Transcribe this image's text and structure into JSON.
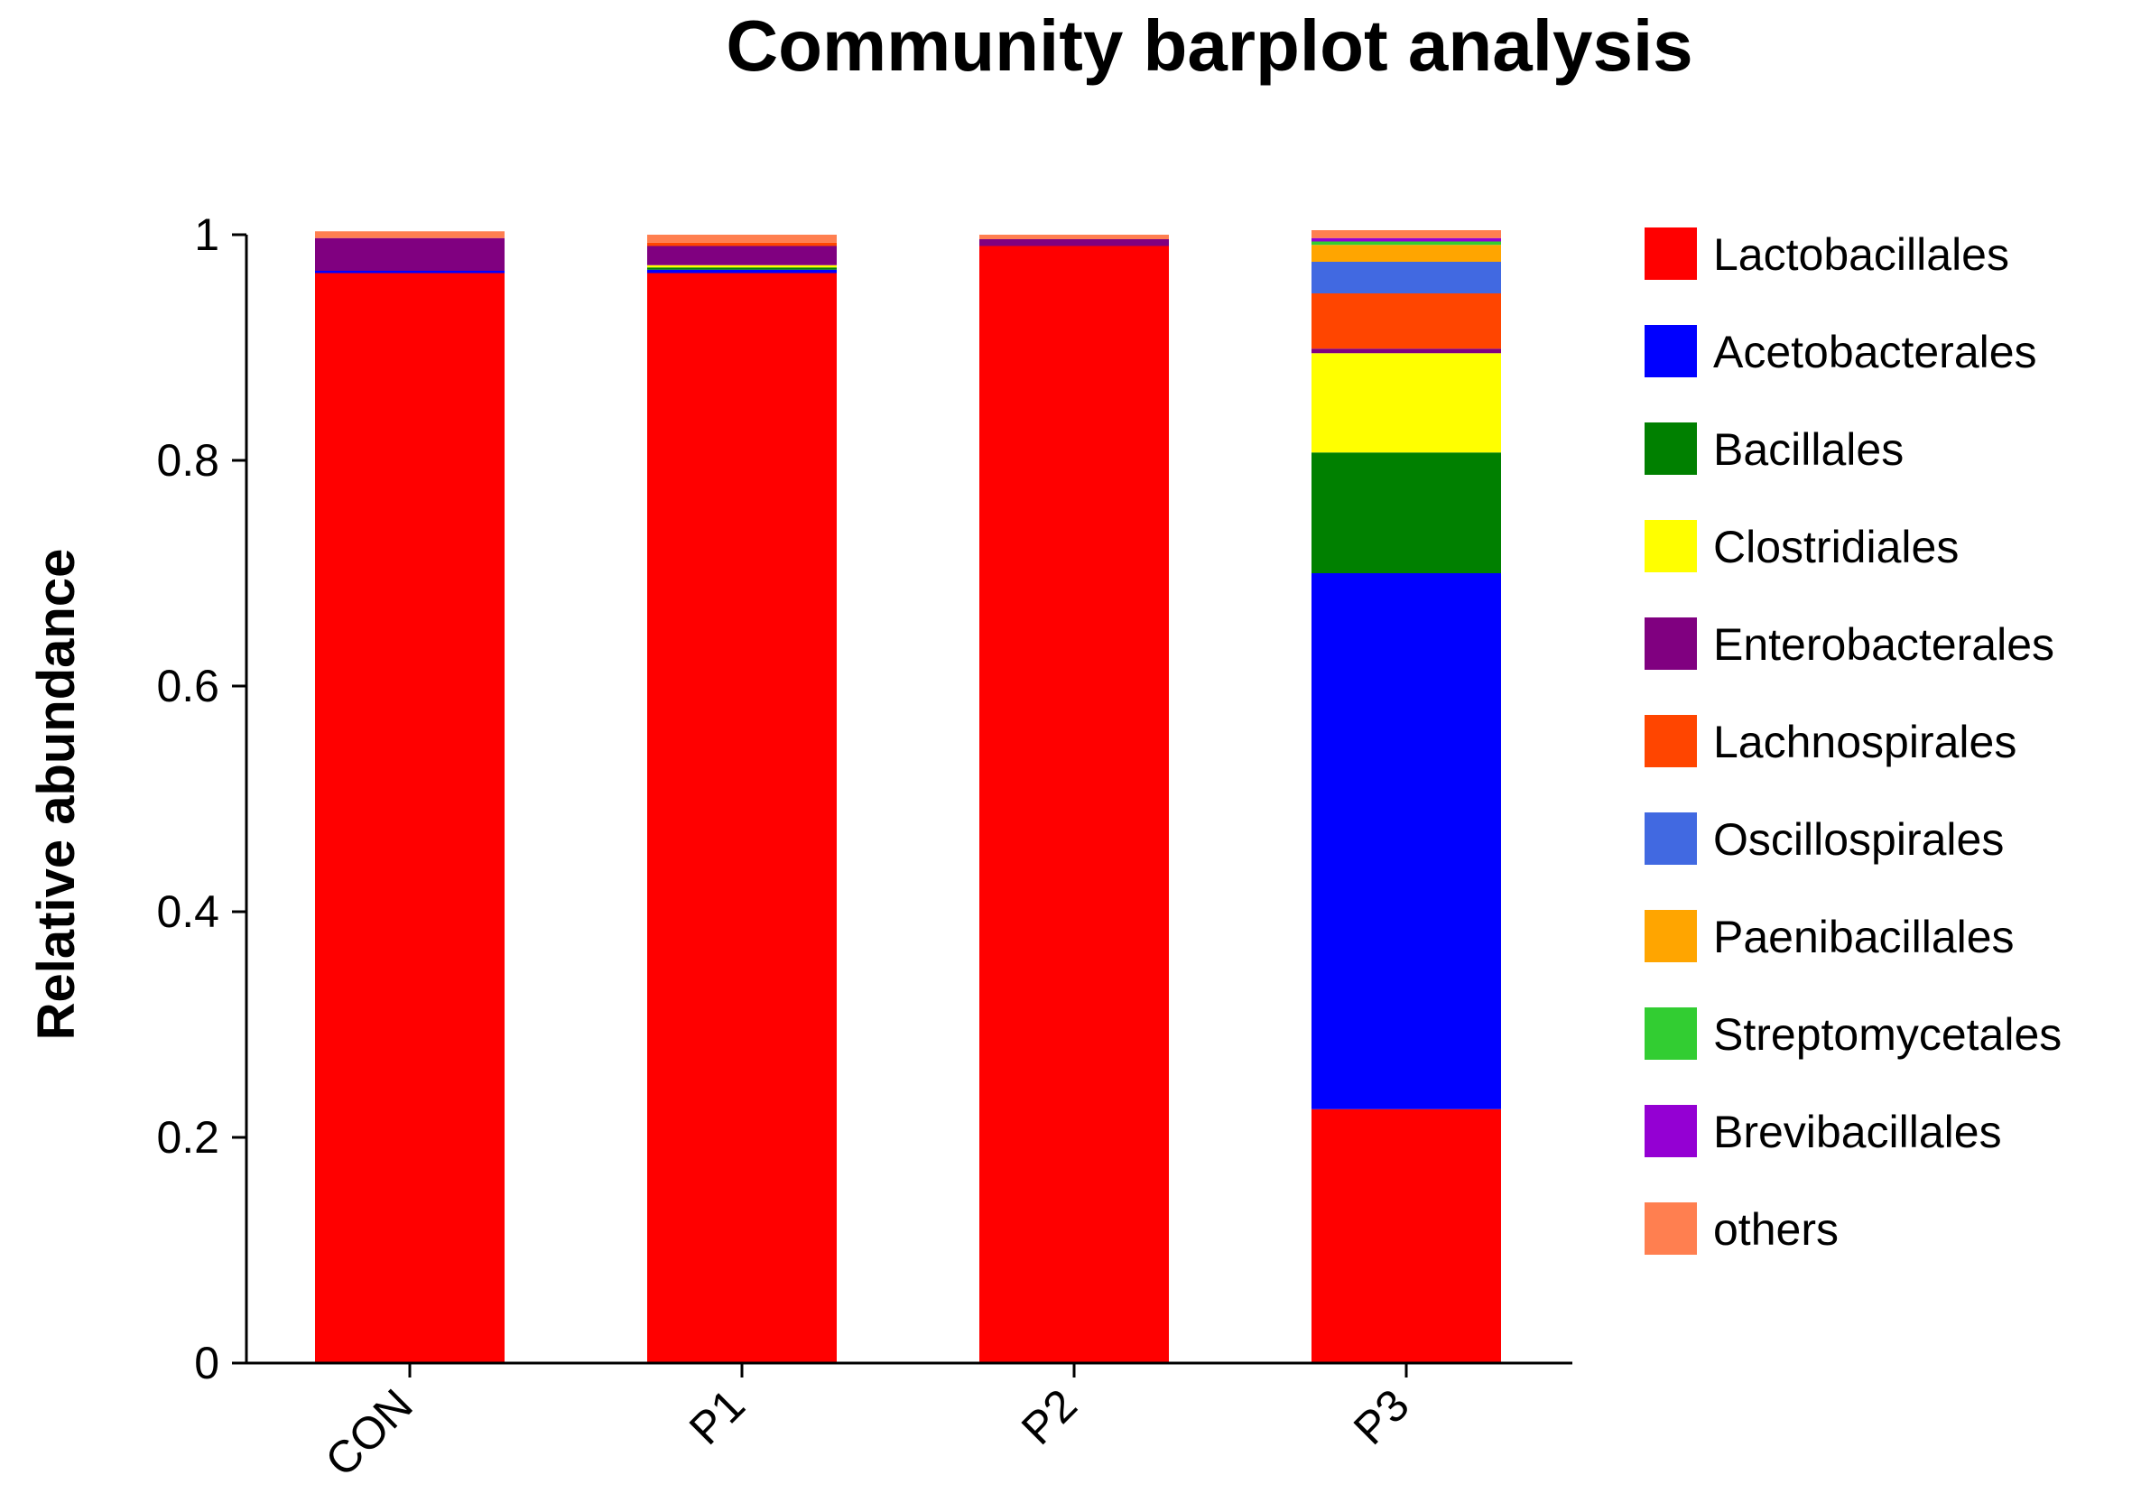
{
  "chart_data": {
    "type": "bar",
    "stacked": true,
    "title": "Community barplot analysis",
    "xlabel": "",
    "ylabel": "Relative abundance",
    "ylim": [
      0,
      1
    ],
    "yticks": [
      0,
      0.2,
      0.4,
      0.6,
      0.8,
      1
    ],
    "ytick_labels": [
      "0",
      "0.2",
      "0.4",
      "0.6",
      "0.8",
      "1"
    ],
    "categories": [
      "CON",
      "P1",
      "P2",
      "P3"
    ],
    "legend_position": "right",
    "grid": false,
    "series": [
      {
        "name": "Lactobacillales",
        "color": "#FF0000",
        "values": [
          0.966,
          0.966,
          0.99,
          0.225
        ]
      },
      {
        "name": "Acetobacterales",
        "color": "#0000FF",
        "values": [
          0.002,
          0.003,
          0.0,
          0.475
        ]
      },
      {
        "name": "Bacillales",
        "color": "#008000",
        "values": [
          0.0,
          0.002,
          0.0,
          0.107
        ]
      },
      {
        "name": "Clostridiales",
        "color": "#FFFF00",
        "values": [
          0.0,
          0.002,
          0.0,
          0.088
        ]
      },
      {
        "name": "Enterobacterales",
        "color": "#800080",
        "values": [
          0.029,
          0.017,
          0.006,
          0.004
        ]
      },
      {
        "name": "Lachnospirales",
        "color": "#FF4500",
        "values": [
          0.0,
          0.003,
          0.0,
          0.049
        ]
      },
      {
        "name": "Oscillospirales",
        "color": "#4169E1",
        "values": [
          0.0,
          0.0,
          0.0,
          0.028
        ]
      },
      {
        "name": "Paenibacillales",
        "color": "#FFA500",
        "values": [
          0.0,
          0.0,
          0.0,
          0.015
        ]
      },
      {
        "name": "Streptomycetales",
        "color": "#32CD32",
        "values": [
          0.0,
          0.0,
          0.0,
          0.003
        ]
      },
      {
        "name": "Brevibacillales",
        "color": "#9400D3",
        "values": [
          0.0,
          0.0,
          0.0,
          0.003
        ]
      },
      {
        "name": "others",
        "color": "#FF7F50",
        "values": [
          0.006,
          0.007,
          0.004,
          0.007
        ]
      }
    ]
  }
}
